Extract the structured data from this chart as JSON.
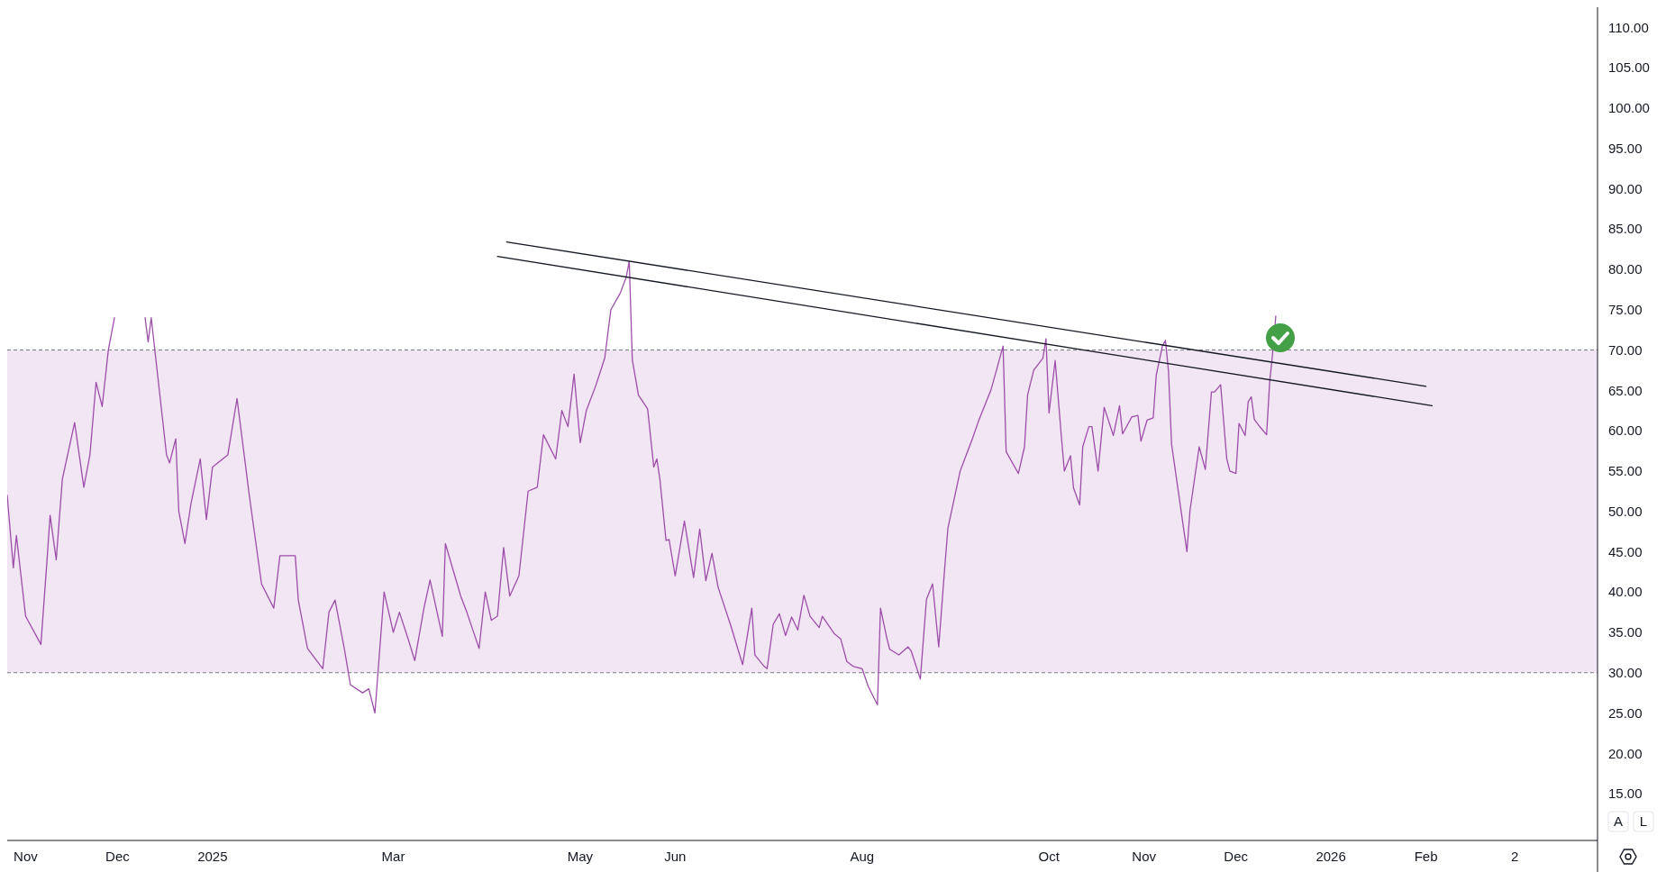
{
  "chart_data": {
    "type": "line",
    "x": [
      "2024-10-26",
      "2024-10-28",
      "2024-10-29",
      "2024-11-01",
      "2024-11-06",
      "2024-11-08",
      "2024-11-09",
      "2024-11-11",
      "2024-11-13",
      "2024-11-17",
      "2024-11-20",
      "2024-11-22",
      "2024-11-24",
      "2024-11-26",
      "2024-11-28",
      "2024-11-30",
      "2024-12-05",
      "2024-12-10",
      "2024-12-11",
      "2024-12-12",
      "2024-12-17",
      "2024-12-18",
      "2024-12-20",
      "2024-12-21",
      "2024-12-23",
      "2024-12-25",
      "2024-12-28",
      "2024-12-30",
      "2025-01-01",
      "2025-01-06",
      "2025-01-09",
      "2025-01-13",
      "2025-01-17",
      "2025-01-21",
      "2025-01-23",
      "2025-01-28",
      "2025-01-29",
      "2025-02-01",
      "2025-02-06",
      "2025-02-08",
      "2025-02-10",
      "2025-02-13",
      "2025-02-15",
      "2025-02-19",
      "2025-02-21",
      "2025-02-23",
      "2025-02-26",
      "2025-03-01",
      "2025-03-03",
      "2025-03-06",
      "2025-03-08",
      "2025-03-11",
      "2025-03-13",
      "2025-03-17",
      "2025-03-18",
      "2025-03-23",
      "2025-03-25",
      "2025-03-29",
      "2025-03-31",
      "2025-04-02",
      "2025-04-04",
      "2025-04-06",
      "2025-04-08",
      "2025-04-11",
      "2025-04-14",
      "2025-04-17",
      "2025-04-19",
      "2025-04-23",
      "2025-04-25",
      "2025-04-27",
      "2025-04-29",
      "2025-05-01",
      "2025-05-03",
      "2025-05-06",
      "2025-05-09",
      "2025-05-11",
      "2025-05-14",
      "2025-05-16",
      "2025-05-17",
      "2025-05-18",
      "2025-05-20",
      "2025-05-23",
      "2025-05-25",
      "2025-05-26",
      "2025-05-27",
      "2025-05-29",
      "2025-05-30",
      "2025-06-01",
      "2025-06-04",
      "2025-06-07",
      "2025-06-09",
      "2025-06-11",
      "2025-06-13",
      "2025-06-15",
      "2025-06-19",
      "2025-06-23",
      "2025-06-26",
      "2025-06-27",
      "2025-06-30",
      "2025-07-01",
      "2025-07-03",
      "2025-07-05",
      "2025-07-07",
      "2025-07-09",
      "2025-07-11",
      "2025-07-13",
      "2025-07-15",
      "2025-07-18",
      "2025-07-19",
      "2025-07-23",
      "2025-07-25",
      "2025-07-27",
      "2025-07-29",
      "2025-08-01",
      "2025-08-03",
      "2025-08-06",
      "2025-08-07",
      "2025-08-09",
      "2025-08-10",
      "2025-08-13",
      "2025-08-16",
      "2025-08-17",
      "2025-08-20",
      "2025-08-22",
      "2025-08-24",
      "2025-08-26",
      "2025-08-28",
      "2025-08-29",
      "2025-09-02",
      "2025-09-06",
      "2025-09-08",
      "2025-09-12",
      "2025-09-14",
      "2025-09-16",
      "2025-09-17",
      "2025-09-21",
      "2025-09-23",
      "2025-09-24",
      "2025-09-26",
      "2025-09-29",
      "2025-09-30",
      "2025-10-01",
      "2025-10-03",
      "2025-10-05",
      "2025-10-06",
      "2025-10-08",
      "2025-10-09",
      "2025-10-11",
      "2025-10-12",
      "2025-10-14",
      "2025-10-15",
      "2025-10-17",
      "2025-10-19",
      "2025-10-22",
      "2025-10-24",
      "2025-10-25",
      "2025-10-28",
      "2025-10-30",
      "2025-10-31",
      "2025-11-02",
      "2025-11-04",
      "2025-11-05",
      "2025-11-07",
      "2025-11-08",
      "2025-11-09",
      "2025-11-10",
      "2025-11-15",
      "2025-11-16",
      "2025-11-19",
      "2025-11-21",
      "2025-11-23",
      "2025-11-24",
      "2025-11-26",
      "2025-11-28",
      "2025-11-29",
      "2025-12-01",
      "2025-12-02",
      "2025-12-04",
      "2025-12-05",
      "2025-12-06",
      "2025-12-07",
      "2025-12-09",
      "2025-12-11",
      "2025-12-12",
      "2025-12-13",
      "2025-12-14"
    ],
    "series": [
      {
        "color": "#9c4fa8",
        "values": [
          52,
          43,
          47,
          37,
          33.5,
          44,
          49.5,
          44,
          54,
          61,
          53,
          57,
          66,
          63,
          70,
          74,
          null,
          74,
          71,
          74,
          57,
          56,
          59,
          50,
          46,
          51,
          56.5,
          49,
          55.5,
          57,
          64,
          52,
          41,
          38,
          44.5,
          44.5,
          39,
          33,
          30.5,
          37.5,
          39,
          33,
          28.5,
          27.5,
          28,
          25,
          40,
          35,
          37.5,
          34,
          31.5,
          38,
          41.5,
          34.5,
          46,
          39.5,
          37.5,
          33,
          40,
          36.5,
          37,
          45.5,
          39.5,
          42,
          52.5,
          53,
          59.5,
          56.5,
          62.5,
          60.5,
          67,
          58.5,
          62.5,
          65.5,
          69,
          75,
          77,
          79,
          81,
          68.8,
          64.4,
          62.7,
          55.5,
          56.5,
          54,
          46.4,
          46.5,
          42,
          48.8,
          41.8,
          47.8,
          41.4,
          44.8,
          40.6,
          36,
          31,
          38,
          32.2,
          30.8,
          30.5,
          36,
          37.3,
          34.6,
          36.9,
          35.3,
          39.6,
          37,
          35.6,
          37,
          34.8,
          34.2,
          31.4,
          30.8,
          30.5,
          28.3,
          26,
          38,
          34.4,
          32.9,
          32.2,
          33.2,
          32.7,
          29.2,
          39.1,
          41,
          33.2,
          43.2,
          47.9,
          55,
          59,
          61.2,
          65,
          67.7,
          70.5,
          57.4,
          54.7,
          58,
          64.4,
          67.5,
          69,
          71.4,
          62.2,
          68.7,
          59.4,
          55,
          56.9,
          52.9,
          50.8,
          58,
          60.5,
          60.5,
          55,
          62.9,
          59.4,
          63.1,
          59.6,
          61.7,
          61.9,
          58.7,
          61.3,
          61.6,
          66.9,
          70.5,
          71.2,
          67.3,
          58.3,
          45,
          50.1,
          58,
          55.2,
          64.8,
          64.8,
          65.7,
          56.5,
          55,
          54.7,
          60.9,
          59.4,
          63.6,
          64.2,
          61.4,
          60.4,
          59.5,
          66,
          69.7,
          74.2
        ]
      },
      {
        "type": "line",
        "color": "#131722",
        "x": [
          "2025-04-07",
          "2026-02-01"
        ],
        "values": [
          83.4,
          65.5
        ]
      },
      {
        "type": "line",
        "color": "#131722",
        "x": [
          "2025-04-04",
          "2026-02-03"
        ],
        "values": [
          81.6,
          63.1
        ]
      }
    ],
    "xlim": [
      "2024-10-26",
      "2026-03-29"
    ],
    "xticks": [
      {
        "value": "2024-11-01",
        "label": "Nov"
      },
      {
        "value": "2024-12-01",
        "label": "Dec"
      },
      {
        "value": "2025-01-01",
        "label": "2025"
      },
      {
        "value": "2025-03-01",
        "label": "Mar"
      },
      {
        "value": "2025-05-01",
        "label": "May"
      },
      {
        "value": "2025-06-01",
        "label": "Jun"
      },
      {
        "value": "2025-08-01",
        "label": "Aug"
      },
      {
        "value": "2025-10-01",
        "label": "Oct"
      },
      {
        "value": "2025-11-01",
        "label": "Nov"
      },
      {
        "value": "2025-12-01",
        "label": "Dec"
      },
      {
        "value": "2026-01-01",
        "label": "2026"
      },
      {
        "value": "2026-02-01",
        "label": "Feb"
      },
      {
        "value": "2026-03-02",
        "label": "2"
      }
    ],
    "ylim": [
      9.2,
      112.5
    ],
    "yticks": [
      {
        "value": 15,
        "label": "15.00"
      },
      {
        "value": 20,
        "label": "20.00"
      },
      {
        "value": 25,
        "label": "25.00"
      },
      {
        "value": 30,
        "label": "30.00"
      },
      {
        "value": 35,
        "label": "35.00"
      },
      {
        "value": 40,
        "label": "40.00"
      },
      {
        "value": 45,
        "label": "45.00"
      },
      {
        "value": 50,
        "label": "50.00"
      },
      {
        "value": 55,
        "label": "55.00"
      },
      {
        "value": 60,
        "label": "60.00"
      },
      {
        "value": 65,
        "label": "65.00"
      },
      {
        "value": 70,
        "label": "70.00"
      },
      {
        "value": 75,
        "label": "75.00"
      },
      {
        "value": 80,
        "label": "80.00"
      },
      {
        "value": 85,
        "label": "85.00"
      },
      {
        "value": 90,
        "label": "90.00"
      },
      {
        "value": 95,
        "label": "95.00"
      },
      {
        "value": 100,
        "label": "100.00"
      },
      {
        "value": 105,
        "label": "105.00"
      },
      {
        "value": 110,
        "label": "110.00"
      }
    ],
    "bands": [
      {
        "axis": "y",
        "from": 30,
        "to": 70,
        "color": "#f2e5f4"
      }
    ],
    "ref_lines": [
      {
        "axis": "y",
        "value": 70,
        "color": "#787b86",
        "line_style": "dashed"
      },
      {
        "axis": "y",
        "value": 30,
        "color": "#787b86",
        "line_style": "dashed"
      }
    ],
    "annotations": [
      "A",
      "L"
    ],
    "grid": false,
    "line_style": "solid",
    "marker": "none"
  }
}
